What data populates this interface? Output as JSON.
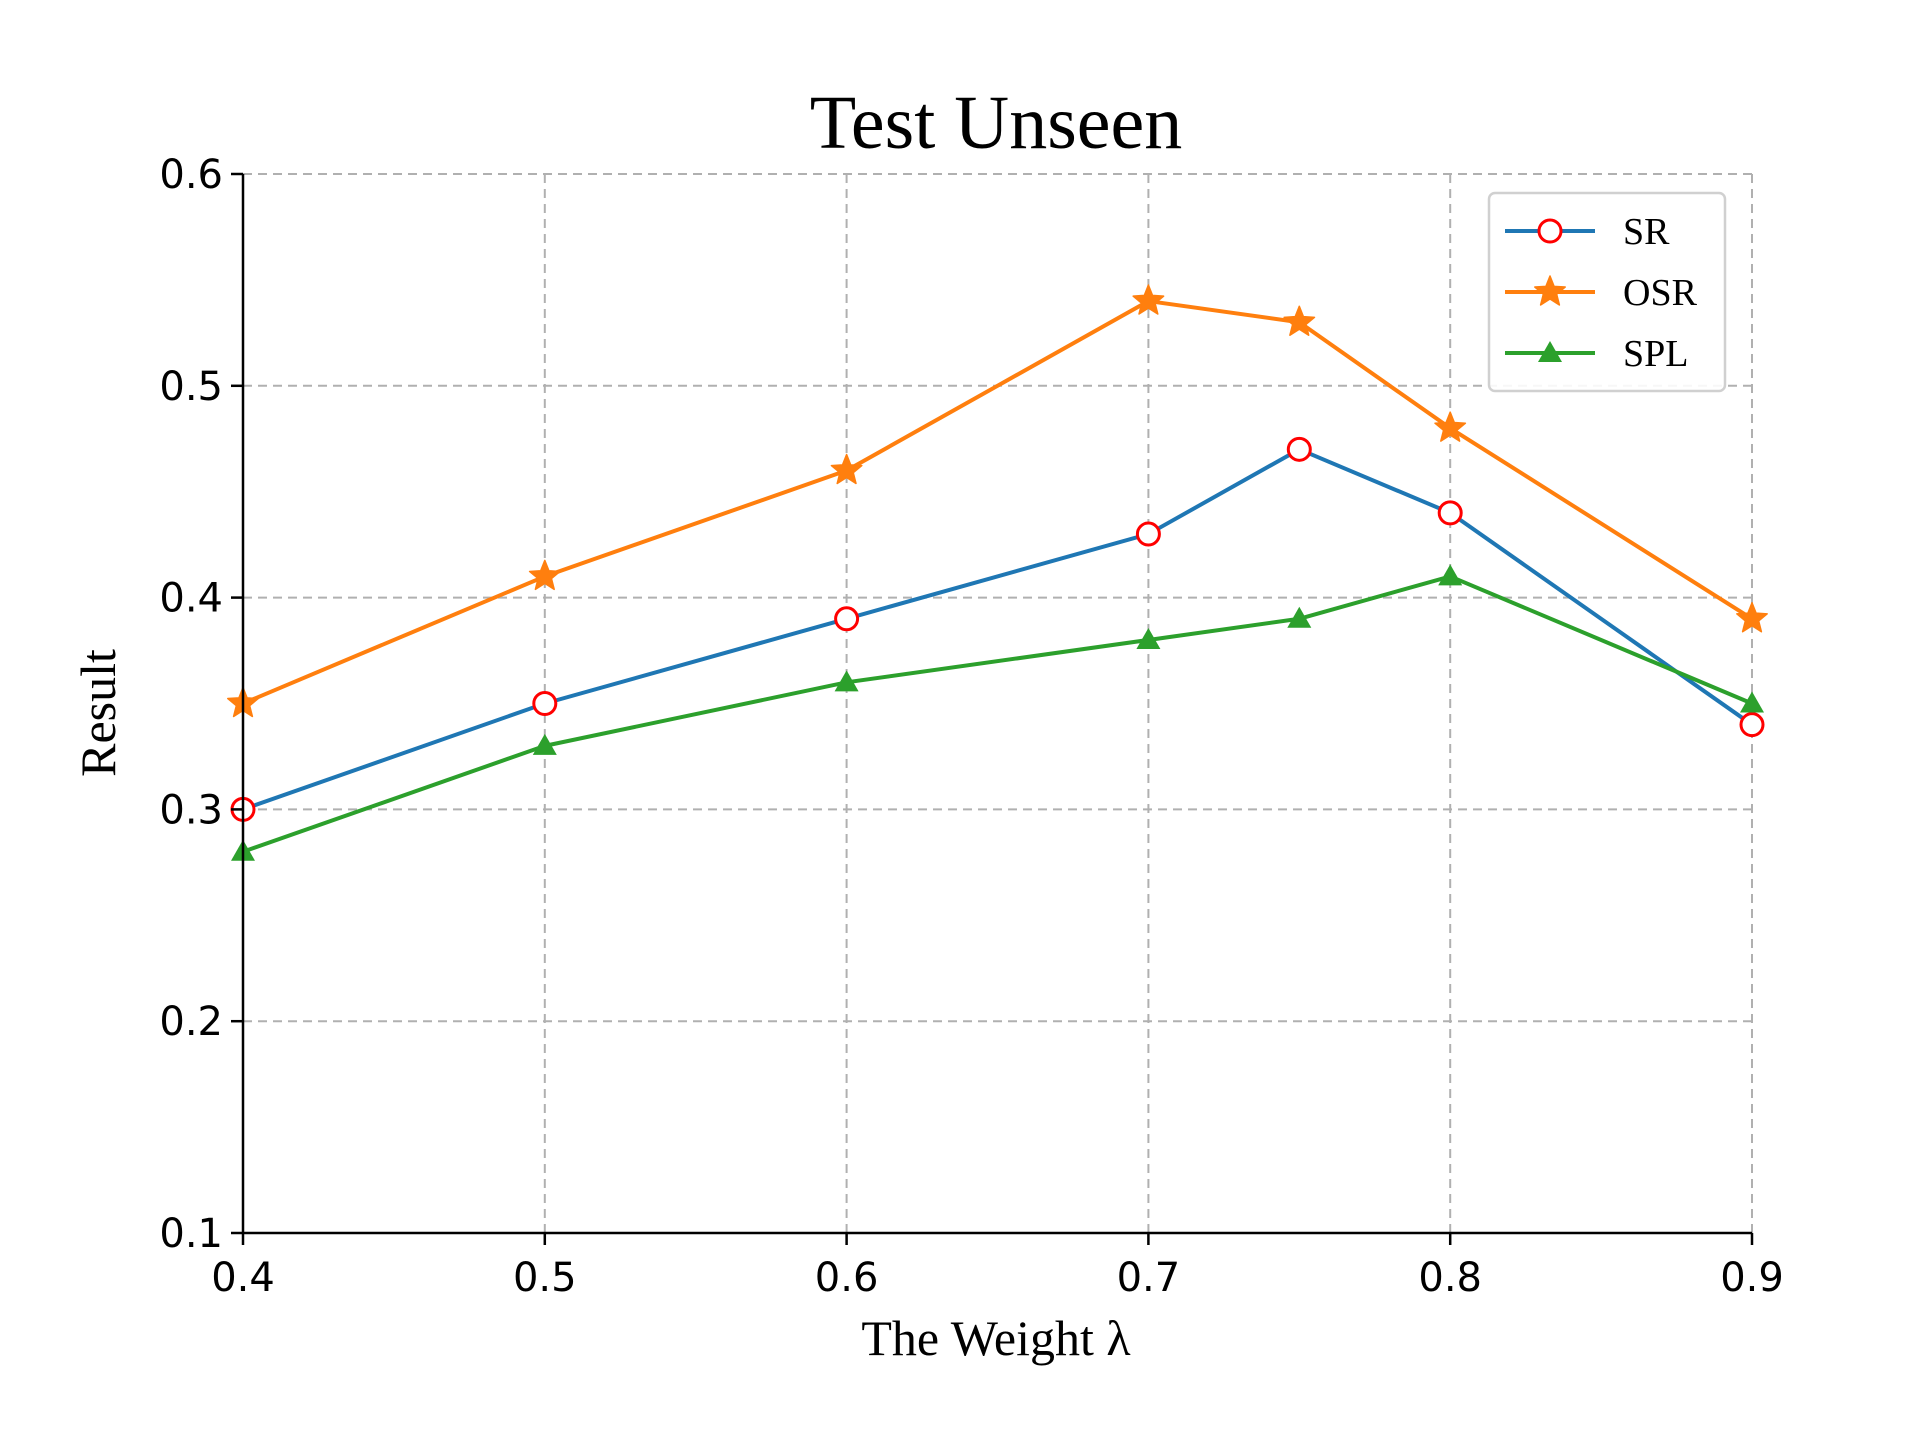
{
  "chart_data": {
    "type": "line",
    "title": "Test Unseen",
    "xlabel": "The Weight λ",
    "ylabel": "Result",
    "x": [
      0.4,
      0.5,
      0.6,
      0.7,
      0.75,
      0.8,
      0.9
    ],
    "xlim": [
      0.4,
      0.9
    ],
    "ylim": [
      0.1,
      0.6
    ],
    "xticks": [
      "0.4",
      "0.5",
      "0.6",
      "0.7",
      "0.8",
      "0.9"
    ],
    "yticks": [
      "0.1",
      "0.2",
      "0.3",
      "0.4",
      "0.5",
      "0.6"
    ],
    "grid": true,
    "legend_position": "top-right",
    "series": [
      {
        "name": "SR",
        "values": [
          0.3,
          0.35,
          0.39,
          0.43,
          0.47,
          0.44,
          0.34
        ],
        "color": "#1f77b4",
        "marker": "circle",
        "marker_edge_color": "#ff0000"
      },
      {
        "name": "OSR",
        "values": [
          0.35,
          0.41,
          0.46,
          0.54,
          0.53,
          0.48,
          0.39
        ],
        "color": "#ff7f0e",
        "marker": "star"
      },
      {
        "name": "SPL",
        "values": [
          0.28,
          0.33,
          0.36,
          0.38,
          0.39,
          0.41,
          0.35
        ],
        "color": "#2ca02c",
        "marker": "triangle"
      }
    ]
  }
}
